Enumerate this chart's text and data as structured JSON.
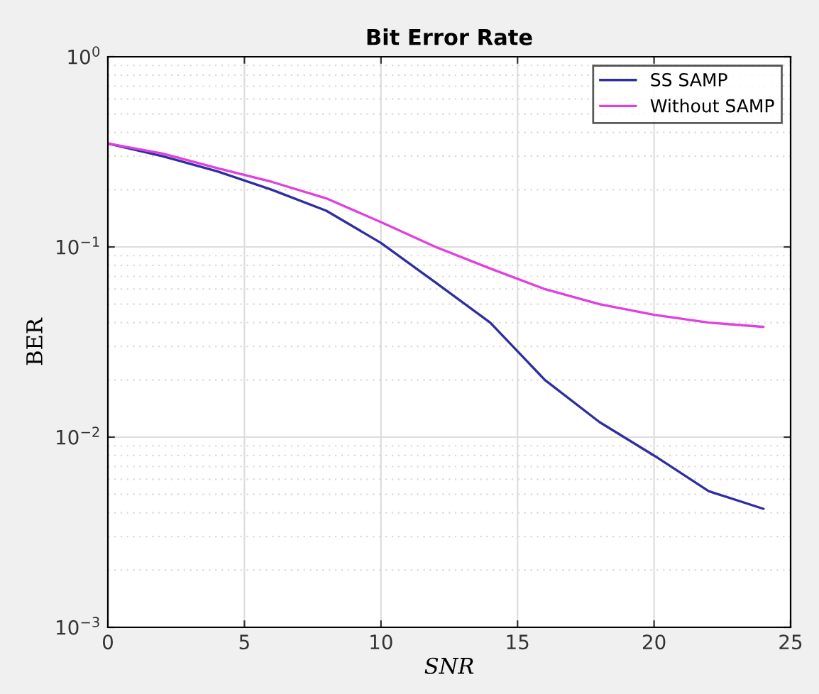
{
  "chart_data": {
    "type": "line",
    "title": "Bit Error Rate",
    "xlabel": "SNR",
    "ylabel": "BER",
    "x": [
      0,
      2,
      4,
      6,
      8,
      10,
      12,
      14,
      16,
      18,
      20,
      22,
      24
    ],
    "series": [
      {
        "name": "SS SAMP",
        "color": "#2e2ea0",
        "values": [
          0.35,
          0.3,
          0.25,
          0.2,
          0.155,
          0.105,
          0.065,
          0.04,
          0.02,
          0.012,
          0.008,
          0.0052,
          0.0042
        ]
      },
      {
        "name": "Without SAMP",
        "color": "#e040e0",
        "values": [
          0.35,
          0.31,
          0.26,
          0.22,
          0.18,
          0.135,
          0.1,
          0.077,
          0.06,
          0.05,
          0.044,
          0.04,
          0.038
        ]
      }
    ],
    "log": "y",
    "xlim": [
      0,
      25
    ],
    "ylim": [
      0.001,
      1
    ],
    "xticks": [
      0,
      5,
      10,
      15,
      20,
      25
    ],
    "yticks": [
      {
        "value": 0.001,
        "label": "10$^{−3}$"
      },
      {
        "value": 0.01,
        "label": "10$^{−2}$"
      },
      {
        "value": 0.1,
        "label": "10$^{−1}$"
      },
      {
        "value": 1,
        "label": "10$^{0}$"
      }
    ],
    "grid": true,
    "legend": "top right",
    "line_style": "solid",
    "marker": "none"
  }
}
